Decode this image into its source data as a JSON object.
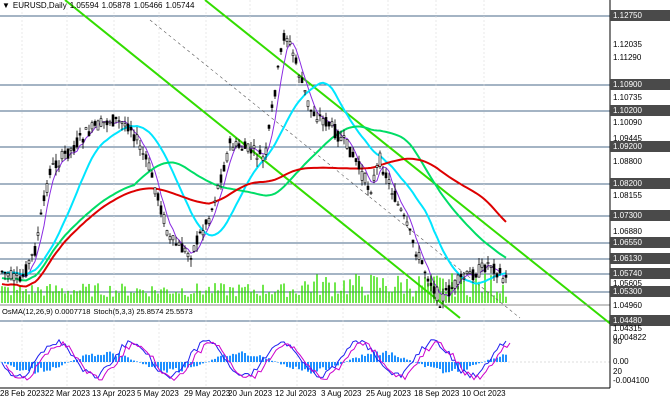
{
  "header": {
    "arrow": "▼",
    "symbol": "EURUSD,Daily",
    "o": "1.05594",
    "h": "1.05878",
    "l": "1.05466",
    "c": "1.05744"
  },
  "indicator_header": {
    "osma": "OsMA(12,26,9) 0.0007718",
    "stoch": "Stoch(5,3,3) 25.8574 25.5573"
  },
  "price_axis": [
    {
      "label": "1.12750",
      "highlight": true
    },
    {
      "label": "1.12035",
      "highlight": false
    },
    {
      "label": "1.11290",
      "highlight": false
    },
    {
      "label": "1.10900",
      "highlight": true
    },
    {
      "label": "1.10735",
      "highlight": false
    },
    {
      "label": "1.10200",
      "highlight": true
    },
    {
      "label": "1.10090",
      "highlight": false
    },
    {
      "label": "1.09445",
      "highlight": false
    },
    {
      "label": "1.09200",
      "highlight": true
    },
    {
      "label": "1.08800",
      "highlight": false
    },
    {
      "label": "1.08200",
      "highlight": true
    },
    {
      "label": "1.08155",
      "highlight": false
    },
    {
      "label": "1.07300",
      "highlight": true
    },
    {
      "label": "1.06880",
      "highlight": false
    },
    {
      "label": "1.06550",
      "highlight": true
    },
    {
      "label": "1.06130",
      "highlight": true
    },
    {
      "label": "1.05740",
      "highlight": true
    },
    {
      "label": "1.05605",
      "highlight": false
    },
    {
      "label": "1.05300",
      "highlight": true
    },
    {
      "label": "1.04960",
      "highlight": false
    },
    {
      "label": "1.04480",
      "highlight": true
    },
    {
      "label": "1.04315",
      "highlight": false
    }
  ],
  "indicator_axis": [
    "0.004822",
    "0.00",
    "80",
    "20",
    "-0.004100"
  ],
  "date_axis": [
    "28 Feb 2023",
    "22 Mar 2023",
    "13 Apr 2023",
    "5 May 2023",
    "29 May 2023",
    "20 Jun 2023",
    "12 Jul 2023",
    "3 Aug 2023",
    "25 Aug 2023",
    "18 Sep 2023",
    "10 Oct 2023"
  ],
  "colors": {
    "candle": "#000000",
    "ma_fast": "#8a2be2",
    "ma_mid": "#00e5ff",
    "ma_slow": "#00dd66",
    "ma_long": "#dd0000",
    "channel": "#33dd00",
    "volume": "#33dd00",
    "osma": "#1e90ff",
    "stoch_main": "#1e1ef0",
    "stoch_signal": "#cc00cc"
  }
}
